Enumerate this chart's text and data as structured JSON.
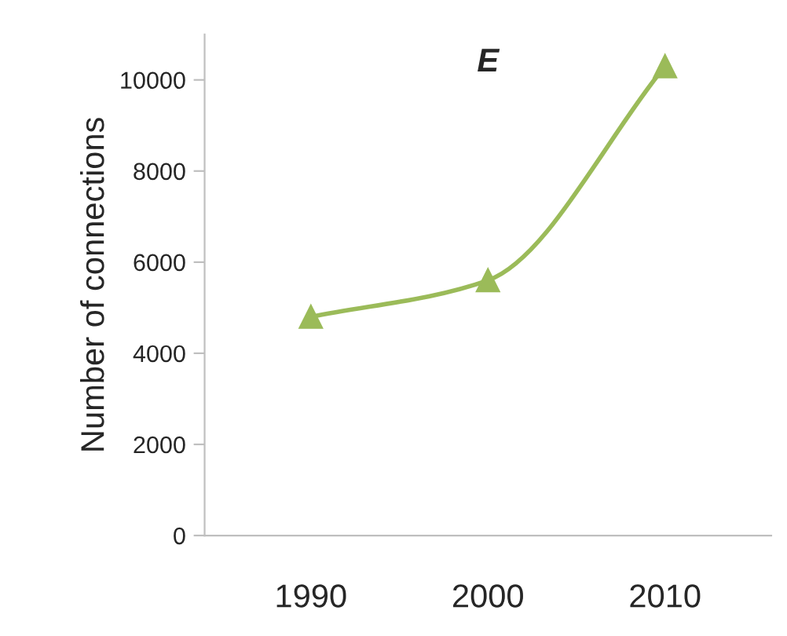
{
  "chart_data": {
    "type": "line",
    "title": "E",
    "ylabel": "Number of connections",
    "categories": [
      "1990",
      "2000",
      "2010"
    ],
    "series": [
      {
        "color": "#9bbb59",
        "values": [
          4800,
          5600,
          10300
        ]
      }
    ],
    "ylim": [
      0,
      11000
    ],
    "yticks": [
      0,
      2000,
      4000,
      6000,
      8000,
      10000
    ],
    "marker": "triangle",
    "grid": false,
    "legend": false
  }
}
